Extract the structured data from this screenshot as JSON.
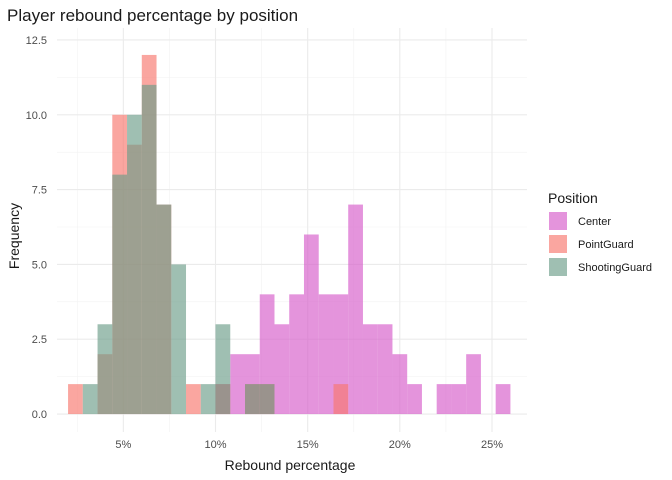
{
  "chart_data": {
    "type": "histogram",
    "title": "Player rebound percentage by position",
    "xlabel": "Rebound percentage",
    "ylabel": "Frequency",
    "xlim": [
      1.4,
      26.9
    ],
    "ylim": [
      -0.6,
      12.9
    ],
    "bin_width": 0.8,
    "x_ticks": [
      5,
      10,
      15,
      20,
      25
    ],
    "x_tick_labels": [
      "5%",
      "10%",
      "15%",
      "20%",
      "25%"
    ],
    "y_ticks": [
      0,
      2.5,
      5,
      7.5,
      10,
      12.5
    ],
    "y_tick_labels": [
      "0.0",
      "2.5",
      "5.0",
      "7.5",
      "10.0",
      "12.5"
    ],
    "legend_title": "Position",
    "legend_position": "right",
    "series": [
      {
        "name": "Center",
        "color": "#D65BC9",
        "bins": [
          {
            "x": 10.4,
            "count": 1
          },
          {
            "x": 11.2,
            "count": 2
          },
          {
            "x": 12.0,
            "count": 2
          },
          {
            "x": 12.8,
            "count": 4
          },
          {
            "x": 13.6,
            "count": 3
          },
          {
            "x": 14.4,
            "count": 4
          },
          {
            "x": 15.2,
            "count": 6
          },
          {
            "x": 16.0,
            "count": 4
          },
          {
            "x": 16.8,
            "count": 4
          },
          {
            "x": 17.6,
            "count": 7
          },
          {
            "x": 18.4,
            "count": 3
          },
          {
            "x": 19.2,
            "count": 3
          },
          {
            "x": 20.0,
            "count": 2
          },
          {
            "x": 20.8,
            "count": 1
          },
          {
            "x": 22.4,
            "count": 1
          },
          {
            "x": 23.2,
            "count": 1
          },
          {
            "x": 24.0,
            "count": 2
          },
          {
            "x": 25.6,
            "count": 1
          }
        ]
      },
      {
        "name": "PointGuard",
        "color": "#F8766D",
        "bins": [
          {
            "x": 2.4,
            "count": 1
          },
          {
            "x": 4.0,
            "count": 2
          },
          {
            "x": 4.8,
            "count": 10
          },
          {
            "x": 5.6,
            "count": 9
          },
          {
            "x": 6.4,
            "count": 12
          },
          {
            "x": 7.2,
            "count": 7
          },
          {
            "x": 8.8,
            "count": 1
          },
          {
            "x": 10.4,
            "count": 1
          },
          {
            "x": 12.0,
            "count": 1
          },
          {
            "x": 12.8,
            "count": 1
          },
          {
            "x": 16.8,
            "count": 1
          }
        ]
      },
      {
        "name": "ShootingGuard",
        "color": "#6B9C88",
        "bins": [
          {
            "x": 3.2,
            "count": 1
          },
          {
            "x": 4.0,
            "count": 3
          },
          {
            "x": 4.8,
            "count": 8
          },
          {
            "x": 5.6,
            "count": 10
          },
          {
            "x": 6.4,
            "count": 11
          },
          {
            "x": 7.2,
            "count": 7
          },
          {
            "x": 8.0,
            "count": 5
          },
          {
            "x": 9.6,
            "count": 1
          },
          {
            "x": 10.4,
            "count": 3
          },
          {
            "x": 12.0,
            "count": 1
          },
          {
            "x": 12.8,
            "count": 1
          }
        ]
      }
    ]
  }
}
